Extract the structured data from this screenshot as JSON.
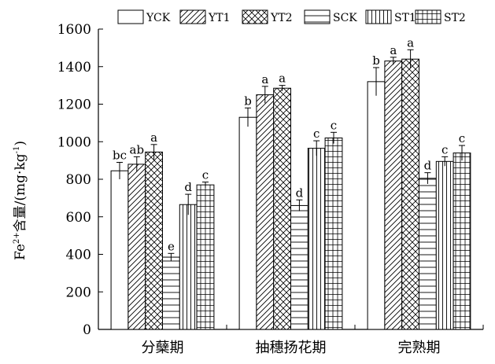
{
  "chart_data": {
    "type": "bar",
    "title": "",
    "xlabel": "",
    "ylabel_main": "Fe",
    "ylabel_sup1": "2+",
    "ylabel_mid": "含量/(mg·kg",
    "ylabel_sup2": "-1",
    "ylabel_end": ")",
    "ylim": [
      0,
      1600
    ],
    "yticks": [
      "0",
      "200",
      "400",
      "600",
      "800",
      "1000",
      "1200",
      "1400",
      "1600"
    ],
    "grid": false,
    "legend_position": "top",
    "categories": [
      "分蘖期",
      "抽穗扬花期",
      "完熟期"
    ],
    "series": [
      {
        "name": "YCK",
        "pattern": "blank",
        "values": [
          845,
          1130,
          1320
        ],
        "errors": [
          45,
          50,
          75
        ],
        "labels": [
          "bc",
          "b",
          "b"
        ]
      },
      {
        "name": "YT1",
        "pattern": "diagonal",
        "values": [
          880,
          1250,
          1430
        ],
        "errors": [
          40,
          45,
          20
        ],
        "labels": [
          "ab",
          "a",
          "a"
        ]
      },
      {
        "name": "YT2",
        "pattern": "crosshatch",
        "values": [
          945,
          1285,
          1440
        ],
        "errors": [
          40,
          15,
          50
        ],
        "labels": [
          "a",
          "a",
          "a"
        ]
      },
      {
        "name": "SCK",
        "pattern": "horizontal",
        "values": [
          385,
          660,
          805
        ],
        "errors": [
          20,
          30,
          30
        ],
        "labels": [
          "e",
          "d",
          "d"
        ]
      },
      {
        "name": "ST1",
        "pattern": "vertical",
        "values": [
          665,
          965,
          895
        ],
        "errors": [
          55,
          40,
          25
        ],
        "labels": [
          "d",
          "c",
          "c"
        ]
      },
      {
        "name": "ST2",
        "pattern": "grid",
        "values": [
          770,
          1020,
          940
        ],
        "errors": [
          15,
          30,
          40
        ],
        "labels": [
          "c",
          "c",
          "c"
        ]
      }
    ]
  }
}
